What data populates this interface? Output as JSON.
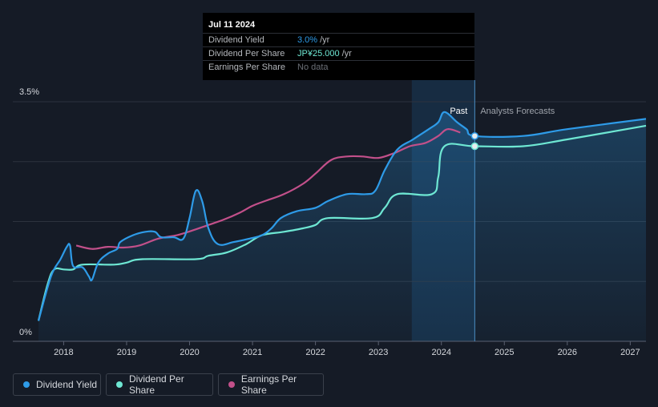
{
  "tooltip": {
    "date": "Jul 11 2024",
    "rows": [
      {
        "label": "Dividend Yield",
        "value": "3.0%",
        "unit": "/yr",
        "color": "#2e9be8"
      },
      {
        "label": "Dividend Per Share",
        "value": "JP¥25.000",
        "unit": "/yr",
        "color": "#6ee7d3"
      },
      {
        "label": "Earnings Per Share",
        "value": "No data",
        "unit": "",
        "color": "#6b6f76"
      }
    ]
  },
  "legend": [
    {
      "label": "Dividend Yield",
      "color": "#2e9be8"
    },
    {
      "label": "Dividend Per Share",
      "color": "#6ee7d3"
    },
    {
      "label": "Earnings Per Share",
      "color": "#c2508a"
    }
  ],
  "chart_data": {
    "type": "line",
    "ylim_labels": [
      "0%",
      "3.5%"
    ],
    "ylim": [
      0,
      3.5
    ],
    "xlim": [
      2017.6,
      2027.25
    ],
    "x_ticks": [
      2018,
      2019,
      2020,
      2021,
      2022,
      2023,
      2024,
      2025,
      2026,
      2027
    ],
    "x_tick_labels": [
      "2018",
      "2019",
      "2020",
      "2021",
      "2022",
      "2023",
      "2024",
      "2025",
      "2026",
      "2027"
    ],
    "past_label": "Past",
    "forecast_label": "Analysts Forecasts",
    "today": 2024.53,
    "highlight_range": [
      2023.53,
      2024.53
    ],
    "series": [
      {
        "name": "Dividend Yield",
        "color": "#2e9be8",
        "points": [
          [
            2017.6,
            0.3
          ],
          [
            2017.8,
            0.95
          ],
          [
            2017.95,
            1.2
          ],
          [
            2018.05,
            1.38
          ],
          [
            2018.1,
            1.4
          ],
          [
            2018.15,
            1.1
          ],
          [
            2018.3,
            1.08
          ],
          [
            2018.4,
            0.95
          ],
          [
            2018.45,
            0.9
          ],
          [
            2018.55,
            1.15
          ],
          [
            2018.7,
            1.28
          ],
          [
            2018.85,
            1.35
          ],
          [
            2018.9,
            1.45
          ],
          [
            2019.1,
            1.55
          ],
          [
            2019.3,
            1.6
          ],
          [
            2019.45,
            1.6
          ],
          [
            2019.55,
            1.52
          ],
          [
            2019.75,
            1.52
          ],
          [
            2019.9,
            1.5
          ],
          [
            2020.0,
            1.8
          ],
          [
            2020.1,
            2.2
          ],
          [
            2020.2,
            2.05
          ],
          [
            2020.3,
            1.65
          ],
          [
            2020.45,
            1.42
          ],
          [
            2020.7,
            1.45
          ],
          [
            2020.95,
            1.5
          ],
          [
            2021.15,
            1.55
          ],
          [
            2021.3,
            1.65
          ],
          [
            2021.45,
            1.8
          ],
          [
            2021.7,
            1.9
          ],
          [
            2022.0,
            1.95
          ],
          [
            2022.2,
            2.05
          ],
          [
            2022.5,
            2.15
          ],
          [
            2022.8,
            2.15
          ],
          [
            2022.95,
            2.2
          ],
          [
            2023.1,
            2.5
          ],
          [
            2023.3,
            2.8
          ],
          [
            2023.55,
            2.95
          ],
          [
            2023.8,
            3.1
          ],
          [
            2023.95,
            3.2
          ],
          [
            2024.05,
            3.35
          ],
          [
            2024.25,
            3.2
          ],
          [
            2024.4,
            3.1
          ],
          [
            2024.53,
            3.0
          ],
          [
            2025.3,
            3.0
          ],
          [
            2026.0,
            3.1
          ],
          [
            2027.25,
            3.25
          ]
        ]
      },
      {
        "name": "Dividend Per Share",
        "color": "#6ee7d3",
        "points": [
          [
            2017.6,
            0.3
          ],
          [
            2017.75,
            0.85
          ],
          [
            2017.85,
            1.05
          ],
          [
            2018.0,
            1.05
          ],
          [
            2018.15,
            1.05
          ],
          [
            2018.3,
            1.12
          ],
          [
            2018.8,
            1.12
          ],
          [
            2019.0,
            1.15
          ],
          [
            2019.25,
            1.2
          ],
          [
            2020.1,
            1.2
          ],
          [
            2020.3,
            1.25
          ],
          [
            2020.6,
            1.3
          ],
          [
            2020.9,
            1.42
          ],
          [
            2021.15,
            1.55
          ],
          [
            2021.5,
            1.6
          ],
          [
            2021.8,
            1.65
          ],
          [
            2022.0,
            1.7
          ],
          [
            2022.2,
            1.8
          ],
          [
            2022.9,
            1.8
          ],
          [
            2023.1,
            1.95
          ],
          [
            2023.3,
            2.15
          ],
          [
            2023.85,
            2.15
          ],
          [
            2023.95,
            2.4
          ],
          [
            2024.05,
            2.85
          ],
          [
            2024.53,
            2.85
          ],
          [
            2025.3,
            2.85
          ],
          [
            2026.0,
            2.95
          ],
          [
            2027.25,
            3.15
          ]
        ]
      },
      {
        "name": "Earnings Per Share",
        "color": "#c2508a",
        "points": [
          [
            2018.2,
            1.4
          ],
          [
            2018.45,
            1.35
          ],
          [
            2018.7,
            1.38
          ],
          [
            2018.95,
            1.37
          ],
          [
            2019.2,
            1.4
          ],
          [
            2019.5,
            1.5
          ],
          [
            2019.8,
            1.55
          ],
          [
            2020.05,
            1.62
          ],
          [
            2020.3,
            1.7
          ],
          [
            2020.55,
            1.78
          ],
          [
            2020.8,
            1.88
          ],
          [
            2021.0,
            1.98
          ],
          [
            2021.2,
            2.05
          ],
          [
            2021.5,
            2.15
          ],
          [
            2021.8,
            2.3
          ],
          [
            2022.0,
            2.45
          ],
          [
            2022.25,
            2.65
          ],
          [
            2022.5,
            2.7
          ],
          [
            2022.75,
            2.7
          ],
          [
            2023.0,
            2.68
          ],
          [
            2023.25,
            2.75
          ],
          [
            2023.5,
            2.85
          ],
          [
            2023.75,
            2.9
          ],
          [
            2023.95,
            3.0
          ],
          [
            2024.1,
            3.1
          ],
          [
            2024.3,
            3.05
          ]
        ]
      }
    ]
  }
}
